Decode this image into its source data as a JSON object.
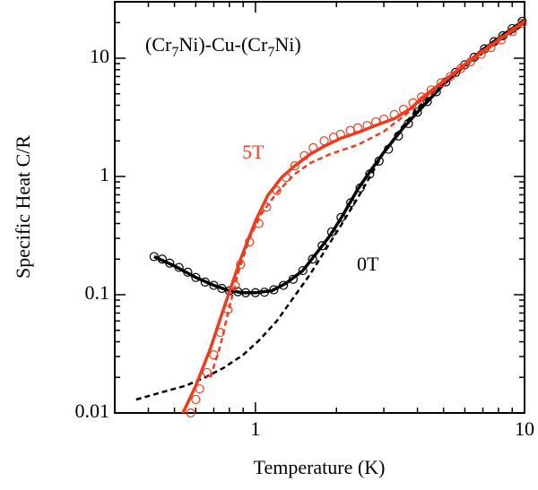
{
  "chart_data": {
    "type": "line",
    "title_parts": [
      "(Cr",
      "7",
      "Ni)-Cu-(Cr",
      "7",
      "Ni)"
    ],
    "xlabel": "Temperature (K)",
    "ylabel": "Specific Heat C/R",
    "log_x": true,
    "log_y": true,
    "xlim": [
      0.3,
      10
    ],
    "ylim": [
      0.01,
      30
    ],
    "xticks": [
      1,
      10
    ],
    "yticks": [
      0.01,
      0.1,
      1,
      10
    ],
    "x_minor_ticks": [
      0.3,
      0.4,
      0.5,
      0.6,
      0.7,
      0.8,
      0.9,
      2,
      3,
      4,
      5,
      6,
      7,
      8,
      9
    ],
    "y_minor_ticks": [
      0.02,
      0.03,
      0.04,
      0.05,
      0.06,
      0.07,
      0.08,
      0.09,
      0.2,
      0.3,
      0.4,
      0.5,
      0.6,
      0.7,
      0.8,
      0.9,
      2,
      3,
      4,
      5,
      6,
      7,
      8,
      9,
      20,
      30
    ],
    "annotations": [
      {
        "text": "5T",
        "color": "#f03c1e"
      },
      {
        "text": "0T",
        "color": "#000000"
      }
    ],
    "series": [
      {
        "style": "circles",
        "color": "#000000",
        "x": [
          0.42,
          0.45,
          0.48,
          0.52,
          0.56,
          0.6,
          0.65,
          0.7,
          0.75,
          0.8,
          0.86,
          0.92,
          1.0,
          1.08,
          1.17,
          1.27,
          1.38,
          1.5,
          1.63,
          1.77,
          1.92,
          2.08,
          2.26,
          2.45,
          2.66,
          2.88,
          3.12,
          3.4,
          3.7,
          4.0,
          4.35,
          4.7,
          5.1,
          5.55,
          6.0,
          6.5,
          7.1,
          7.7,
          8.3,
          9.0,
          9.8
        ],
        "values": [
          0.21,
          0.2,
          0.185,
          0.17,
          0.155,
          0.14,
          0.128,
          0.12,
          0.113,
          0.108,
          0.106,
          0.104,
          0.104,
          0.105,
          0.11,
          0.12,
          0.135,
          0.16,
          0.2,
          0.26,
          0.34,
          0.45,
          0.6,
          0.8,
          1.05,
          1.35,
          1.7,
          2.2,
          2.8,
          3.5,
          4.3,
          5.2,
          6.3,
          7.6,
          8.8,
          10.2,
          12,
          13.8,
          15.5,
          17.8,
          20.5
        ]
      },
      {
        "style": "solid",
        "color": "#000000",
        "x": [
          0.42,
          0.5,
          0.6,
          0.7,
          0.8,
          0.9,
          1.0,
          1.15,
          1.3,
          1.5,
          1.7,
          1.9,
          2.1,
          2.4,
          2.7,
          3.0,
          3.5,
          4.0,
          5.0,
          6.0,
          7.0,
          8.0,
          10.0
        ],
        "values": [
          0.21,
          0.175,
          0.14,
          0.12,
          0.108,
          0.104,
          0.104,
          0.108,
          0.125,
          0.16,
          0.23,
          0.32,
          0.46,
          0.78,
          1.15,
          1.6,
          2.5,
          3.5,
          6.0,
          8.8,
          11.8,
          14.8,
          21
        ]
      },
      {
        "style": "dashed",
        "color": "#000000",
        "x": [
          0.36,
          0.45,
          0.55,
          0.65,
          0.76,
          0.9,
          1.03,
          1.2,
          1.4,
          1.6,
          1.8,
          2.1,
          2.4,
          2.7,
          3.0,
          3.5,
          4.1,
          5.0,
          6.0,
          7.5,
          10.0
        ],
        "values": [
          0.013,
          0.015,
          0.017,
          0.02,
          0.024,
          0.031,
          0.041,
          0.06,
          0.098,
          0.15,
          0.23,
          0.4,
          0.66,
          1.05,
          1.6,
          2.6,
          4.0,
          6.2,
          8.5,
          12.5,
          19.5
        ]
      },
      {
        "style": "circles",
        "color": "#f03c1e",
        "x": [
          0.574,
          0.6,
          0.62,
          0.66,
          0.7,
          0.74,
          0.79,
          0.84,
          0.88,
          0.95,
          1.03,
          1.1,
          1.2,
          1.3,
          1.4,
          1.52,
          1.64,
          1.8,
          1.95,
          2.07,
          2.25,
          2.4,
          2.6,
          2.8,
          3.0,
          3.28,
          3.55,
          3.85,
          4.14,
          4.5,
          4.9,
          5.3,
          5.8,
          6.3,
          6.9,
          7.5,
          8.2,
          9.0,
          9.8
        ],
        "values": [
          0.01,
          0.013,
          0.016,
          0.022,
          0.031,
          0.048,
          0.075,
          0.12,
          0.18,
          0.28,
          0.4,
          0.55,
          0.76,
          0.98,
          1.23,
          1.5,
          1.75,
          2.0,
          2.15,
          2.27,
          2.45,
          2.58,
          2.7,
          2.9,
          3.05,
          3.34,
          3.7,
          4.2,
          4.7,
          5.4,
          6.2,
          7.0,
          8.2,
          9.3,
          10.8,
          12.3,
          14.3,
          16.8,
          19.8
        ]
      },
      {
        "style": "solid",
        "color": "#f03c1e",
        "x": [
          0.535,
          0.6,
          0.68,
          0.76,
          0.88,
          1.0,
          1.11,
          1.25,
          1.4,
          1.6,
          1.8,
          2.07,
          2.4,
          2.8,
          3.3,
          3.8,
          4.14,
          5.0,
          6.0,
          7.5,
          10.0
        ],
        "values": [
          0.0098,
          0.017,
          0.035,
          0.075,
          0.2,
          0.42,
          0.69,
          0.98,
          1.23,
          1.55,
          1.8,
          2.1,
          2.35,
          2.7,
          3.1,
          3.8,
          4.6,
          6.4,
          8.9,
          12.8,
          20.5
        ]
      },
      {
        "style": "dashed",
        "color": "#f03c1e",
        "x": [
          0.68,
          0.74,
          0.79,
          0.86,
          0.95,
          1.05,
          1.2,
          1.4,
          1.6,
          1.9,
          2.4,
          3.0,
          3.6,
          4.14,
          5.0,
          6.0,
          7.5,
          10.0
        ],
        "values": [
          0.02,
          0.037,
          0.07,
          0.15,
          0.3,
          0.48,
          0.73,
          1.05,
          1.3,
          1.55,
          1.85,
          2.4,
          3.3,
          4.4,
          6.3,
          8.6,
          12.5,
          20
        ]
      }
    ]
  }
}
